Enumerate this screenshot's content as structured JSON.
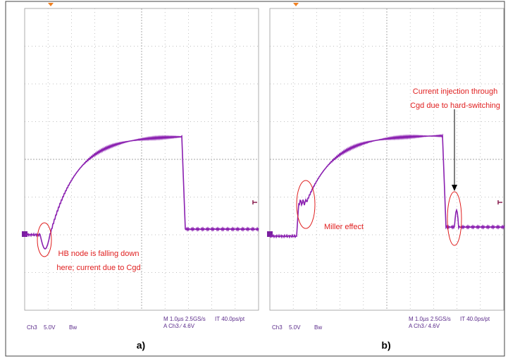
{
  "panels": [
    {
      "label": "a)",
      "channel": "Ch3",
      "scale": "5.0V",
      "bandwidth": "Bw",
      "timebase": "M 1.0µs 2.5GS/s",
      "resolution": "IT 40.0ps/pt",
      "trigger": "A Ch3 ∕ 4.6V",
      "annotations": [
        {
          "lines": [
            "HB node is falling down",
            "here; current due to Cgd"
          ]
        }
      ]
    },
    {
      "label": "b)",
      "channel": "Ch3",
      "scale": "5.0V",
      "bandwidth": "Bw",
      "timebase": "M 1.0µs 2.5GS/s",
      "resolution": "IT 40.0ps/pt",
      "trigger": "A Ch3 ∕ 4.6V",
      "annotations": [
        {
          "lines": [
            "Miller effect"
          ]
        },
        {
          "lines": [
            "Current injection through",
            "Cgd due to hard-switching"
          ]
        }
      ]
    }
  ]
}
